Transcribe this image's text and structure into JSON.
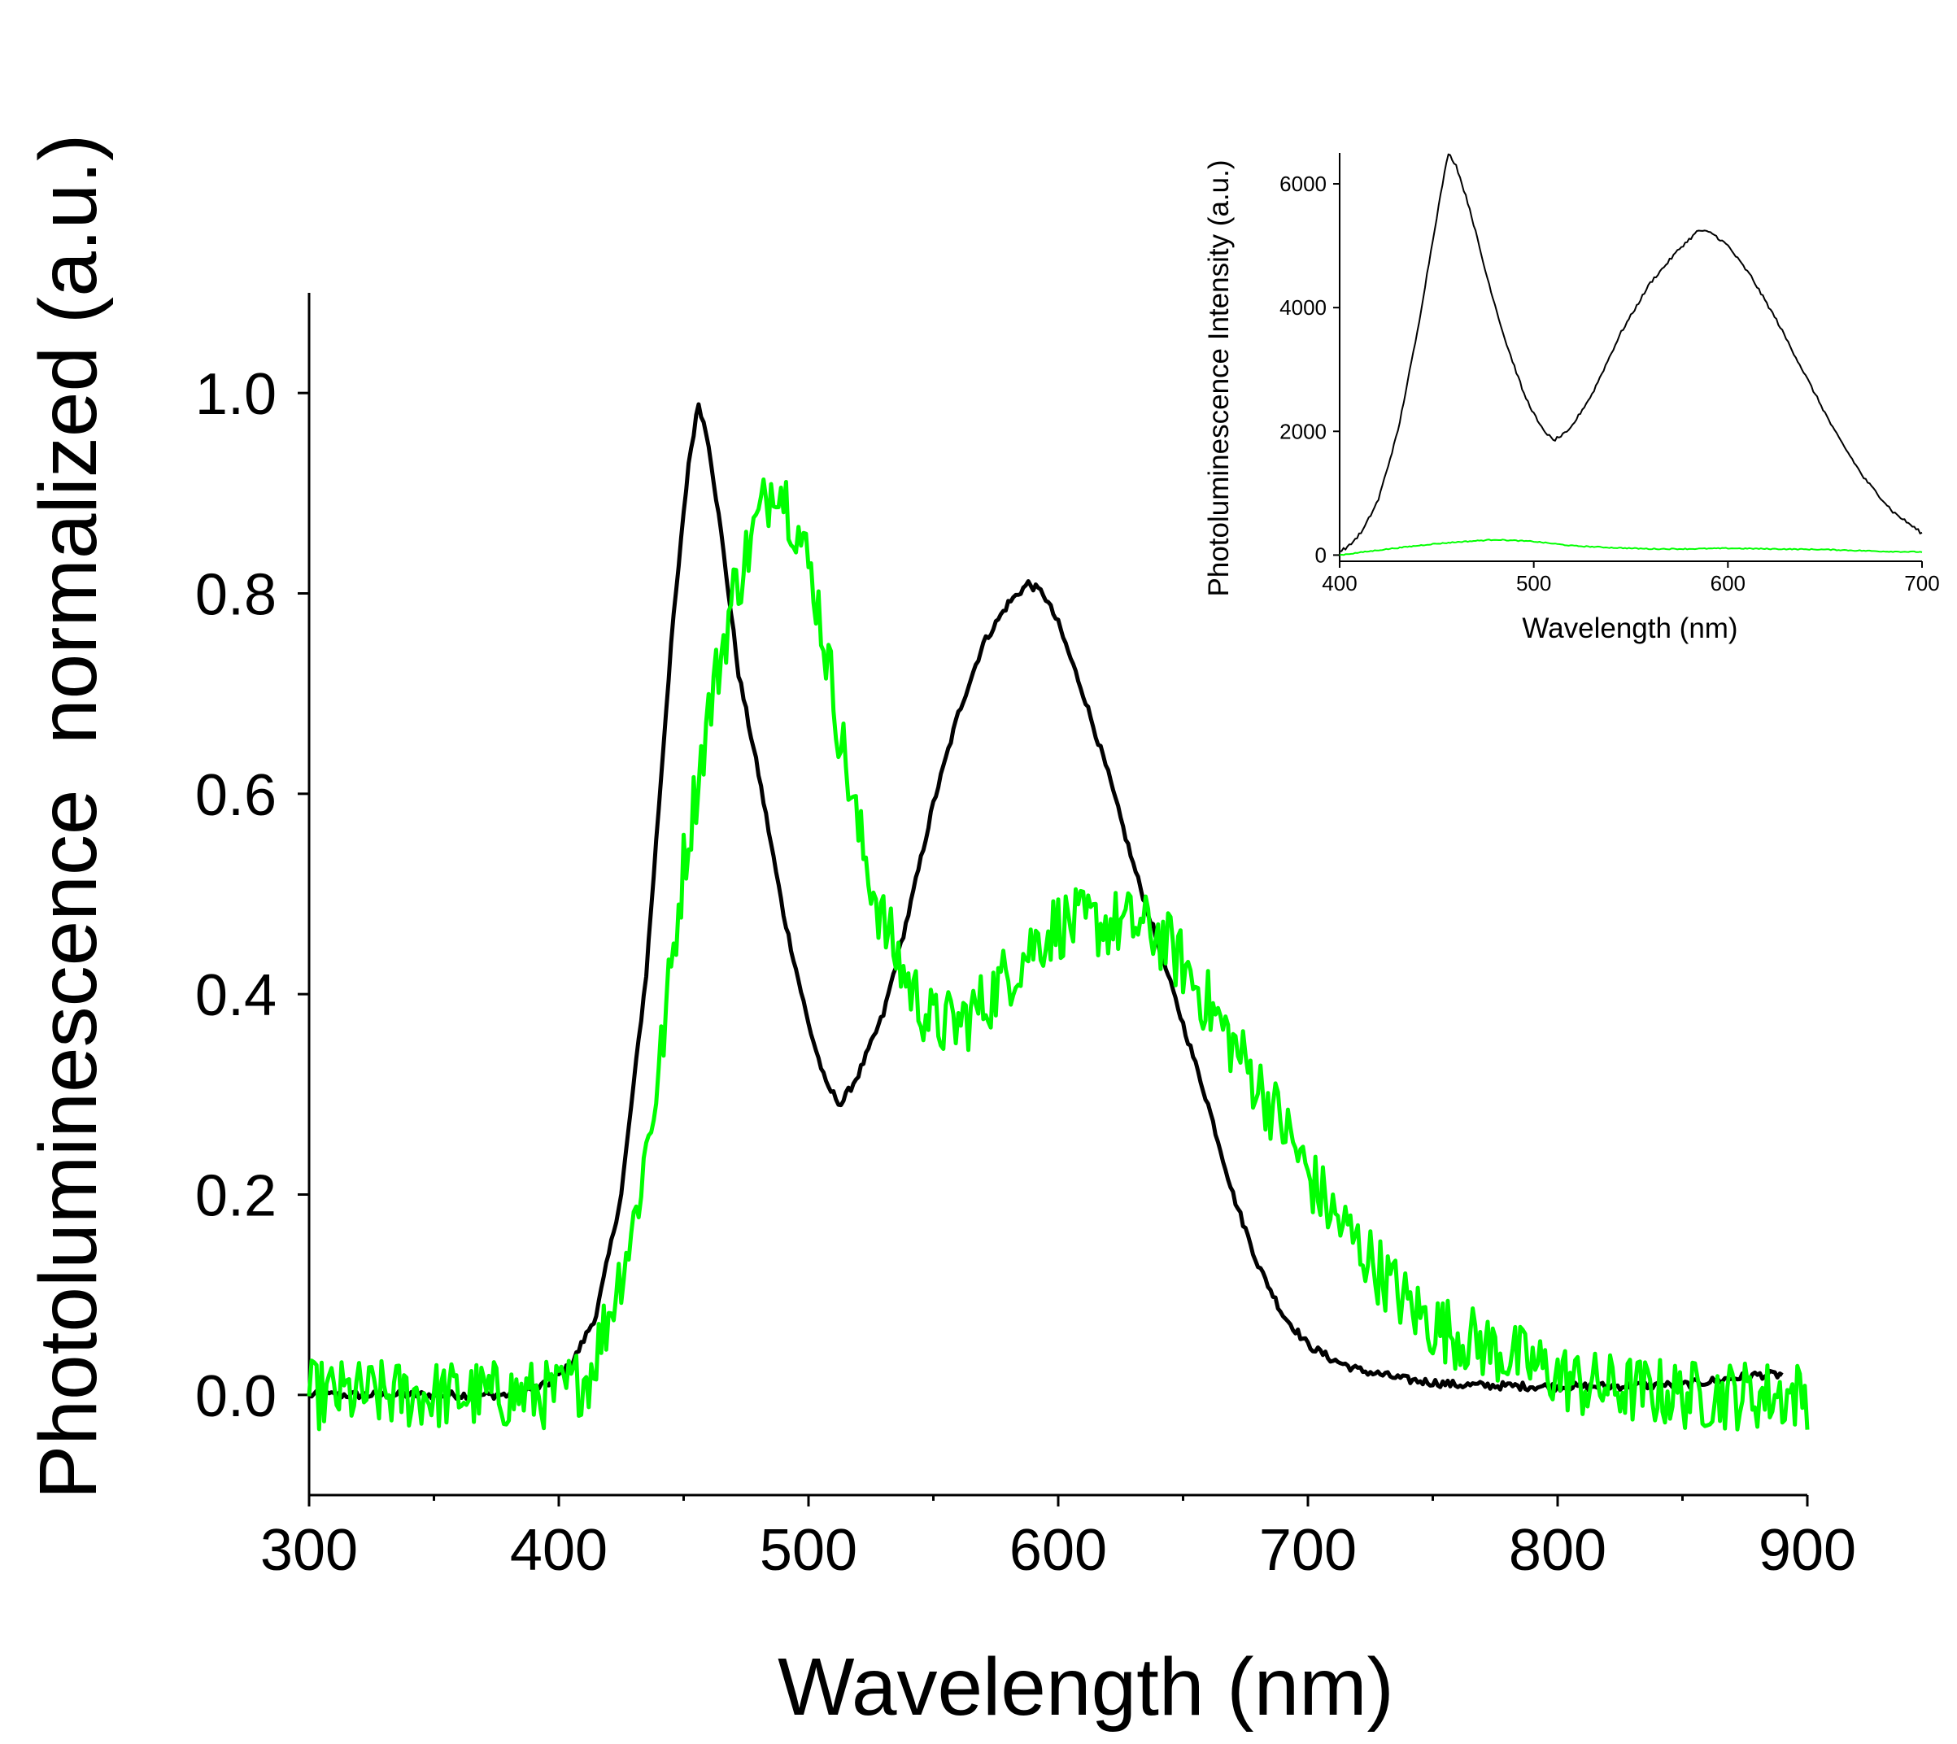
{
  "chart_data": [
    {
      "type": "line",
      "xlabel": "Wavelength (nm)",
      "ylabel": "Photoluminescence  normalized (a.u.)",
      "xlim": [
        300,
        900
      ],
      "ylim": [
        -0.1,
        1.1
      ],
      "xticks": [
        "300",
        "400",
        "500",
        "600",
        "700",
        "800",
        "900"
      ],
      "yticks": [
        "0.0",
        "0.2",
        "0.4",
        "0.6",
        "0.8",
        "1.0"
      ],
      "legend": "none",
      "grid": false,
      "series": [
        {
          "color": "#000000",
          "noise": 0.004,
          "points": [
            [
              300,
              0.0
            ],
            [
              380,
              0.0
            ],
            [
              395,
              0.01
            ],
            [
              405,
              0.03
            ],
            [
              415,
              0.08
            ],
            [
              425,
              0.2
            ],
            [
              435,
              0.42
            ],
            [
              445,
              0.75
            ],
            [
              452,
              0.93
            ],
            [
              456,
              0.99
            ],
            [
              460,
              0.95
            ],
            [
              465,
              0.86
            ],
            [
              472,
              0.72
            ],
            [
              480,
              0.62
            ],
            [
              490,
              0.48
            ],
            [
              500,
              0.37
            ],
            [
              507,
              0.31
            ],
            [
              513,
              0.29
            ],
            [
              520,
              0.32
            ],
            [
              530,
              0.38
            ],
            [
              540,
              0.48
            ],
            [
              550,
              0.59
            ],
            [
              560,
              0.68
            ],
            [
              570,
              0.75
            ],
            [
              580,
              0.79
            ],
            [
              588,
              0.81
            ],
            [
              594,
              0.8
            ],
            [
              600,
              0.77
            ],
            [
              610,
              0.7
            ],
            [
              620,
              0.62
            ],
            [
              630,
              0.53
            ],
            [
              640,
              0.45
            ],
            [
              650,
              0.37
            ],
            [
              660,
              0.29
            ],
            [
              670,
              0.2
            ],
            [
              680,
              0.13
            ],
            [
              690,
              0.08
            ],
            [
              700,
              0.05
            ],
            [
              710,
              0.035
            ],
            [
              720,
              0.025
            ],
            [
              740,
              0.015
            ],
            [
              760,
              0.01
            ],
            [
              800,
              0.008
            ],
            [
              850,
              0.01
            ],
            [
              880,
              0.02
            ],
            [
              890,
              0.02
            ]
          ]
        },
        {
          "color": "#00ff00",
          "noise": 0.035,
          "points": [
            [
              300,
              0.0
            ],
            [
              400,
              0.0
            ],
            [
              412,
              0.02
            ],
            [
              420,
              0.08
            ],
            [
              430,
              0.17
            ],
            [
              440,
              0.32
            ],
            [
              450,
              0.53
            ],
            [
              460,
              0.68
            ],
            [
              470,
              0.8
            ],
            [
              478,
              0.86
            ],
            [
              487,
              0.92
            ],
            [
              495,
              0.87
            ],
            [
              503,
              0.8
            ],
            [
              512,
              0.67
            ],
            [
              520,
              0.56
            ],
            [
              530,
              0.47
            ],
            [
              540,
              0.41
            ],
            [
              550,
              0.37
            ],
            [
              560,
              0.37
            ],
            [
              570,
              0.39
            ],
            [
              580,
              0.42
            ],
            [
              590,
              0.45
            ],
            [
              600,
              0.47
            ],
            [
              610,
              0.47
            ],
            [
              620,
              0.47
            ],
            [
              630,
              0.47
            ],
            [
              640,
              0.46
            ],
            [
              650,
              0.43
            ],
            [
              660,
              0.39
            ],
            [
              670,
              0.35
            ],
            [
              680,
              0.31
            ],
            [
              690,
              0.27
            ],
            [
              700,
              0.22
            ],
            [
              710,
              0.18
            ],
            [
              720,
              0.15
            ],
            [
              730,
              0.12
            ],
            [
              740,
              0.09
            ],
            [
              750,
              0.07
            ],
            [
              770,
              0.05
            ],
            [
              790,
              0.03
            ],
            [
              810,
              0.01
            ],
            [
              850,
              0.0
            ],
            [
              900,
              0.0
            ]
          ]
        }
      ]
    },
    {
      "type": "line",
      "xlabel": "Wavelength (nm)",
      "ylabel": "Photoluminescence Intensity (a.u.)",
      "xlim": [
        400,
        700
      ],
      "ylim": [
        -100,
        6500
      ],
      "xticks": [
        "400",
        "500",
        "600",
        "700"
      ],
      "yticks": [
        "0",
        "2000",
        "4000",
        "6000"
      ],
      "legend": "none",
      "grid": false,
      "series": [
        {
          "color": "#000000",
          "noise": 25,
          "points": [
            [
              400,
              60
            ],
            [
              405,
              150
            ],
            [
              412,
              400
            ],
            [
              420,
              900
            ],
            [
              430,
              2000
            ],
            [
              440,
              3600
            ],
            [
              448,
              5100
            ],
            [
              453,
              6000
            ],
            [
              456,
              6500
            ],
            [
              460,
              6300
            ],
            [
              467,
              5600
            ],
            [
              475,
              4600
            ],
            [
              485,
              3500
            ],
            [
              495,
              2600
            ],
            [
              503,
              2100
            ],
            [
              510,
              1850
            ],
            [
              518,
              2000
            ],
            [
              530,
              2600
            ],
            [
              545,
              3600
            ],
            [
              560,
              4400
            ],
            [
              575,
              4950
            ],
            [
              585,
              5250
            ],
            [
              592,
              5200
            ],
            [
              600,
              5000
            ],
            [
              612,
              4500
            ],
            [
              625,
              3800
            ],
            [
              640,
              2900
            ],
            [
              655,
              2000
            ],
            [
              670,
              1250
            ],
            [
              685,
              700
            ],
            [
              700,
              350
            ]
          ]
        },
        {
          "color": "#00ff00",
          "noise": 8,
          "points": [
            [
              400,
              0
            ],
            [
              420,
              80
            ],
            [
              445,
              170
            ],
            [
              460,
              210
            ],
            [
              480,
              250
            ],
            [
              500,
              220
            ],
            [
              520,
              150
            ],
            [
              540,
              120
            ],
            [
              560,
              100
            ],
            [
              580,
              100
            ],
            [
              600,
              110
            ],
            [
              620,
              100
            ],
            [
              650,
              90
            ],
            [
              680,
              60
            ],
            [
              700,
              50
            ]
          ]
        }
      ]
    }
  ]
}
